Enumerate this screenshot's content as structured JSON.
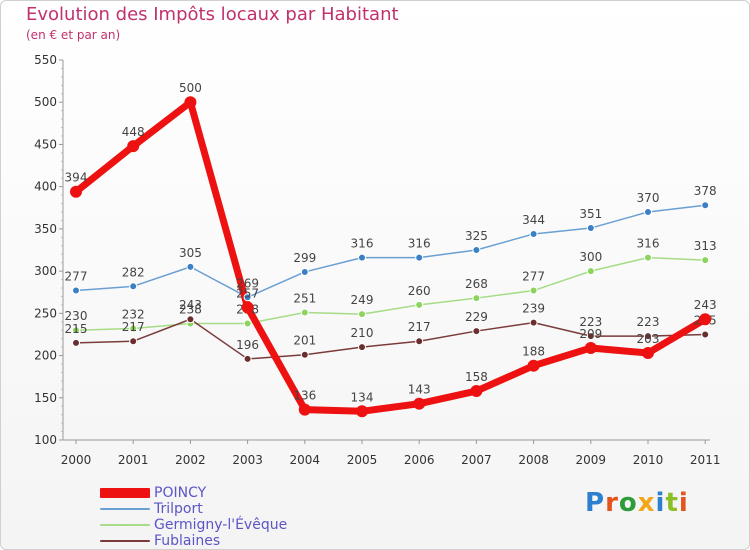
{
  "chart_data": {
    "type": "line",
    "title": "Evolution des Impôts locaux par Habitant",
    "subtitle": "(en € et par an)",
    "xlabel": "",
    "ylabel": "",
    "ylim": [
      100,
      550
    ],
    "yticks": [
      100,
      150,
      200,
      250,
      300,
      350,
      400,
      450,
      500,
      550
    ],
    "categories": [
      "2000",
      "2001",
      "2002",
      "2003",
      "2004",
      "2005",
      "2006",
      "2007",
      "2008",
      "2009",
      "2010",
      "2011"
    ],
    "series": [
      {
        "name": "Trilport",
        "color": "#6a9fd2",
        "marker": "#3b7fc4",
        "values": [
          277,
          282,
          305,
          269,
          299,
          316,
          316,
          325,
          344,
          351,
          370,
          378
        ]
      },
      {
        "name": "Germigny-l'Évêque",
        "color": "#a6dc87",
        "marker": "#8bd45e",
        "values": [
          230,
          232,
          238,
          238,
          251,
          249,
          260,
          268,
          277,
          300,
          316,
          313
        ]
      },
      {
        "name": "Fublaines",
        "color": "#7a3b3b",
        "marker": "#6b2e2e",
        "values": [
          215,
          217,
          243,
          196,
          201,
          210,
          217,
          229,
          239,
          223,
          223,
          225
        ]
      },
      {
        "name": "POINCY",
        "color": "#ee1111",
        "marker": "#ee1111",
        "values": [
          394,
          448,
          500,
          257,
          136,
          134,
          143,
          158,
          188,
          209,
          203,
          243
        ]
      }
    ],
    "legend_position": "bottom-left",
    "legend_order": [
      "POINCY",
      "Trilport",
      "Germigny-l'Évêque",
      "Fublaines"
    ]
  },
  "logo_letters": [
    "P",
    "r",
    "o",
    "x",
    "i",
    "t",
    "i"
  ]
}
